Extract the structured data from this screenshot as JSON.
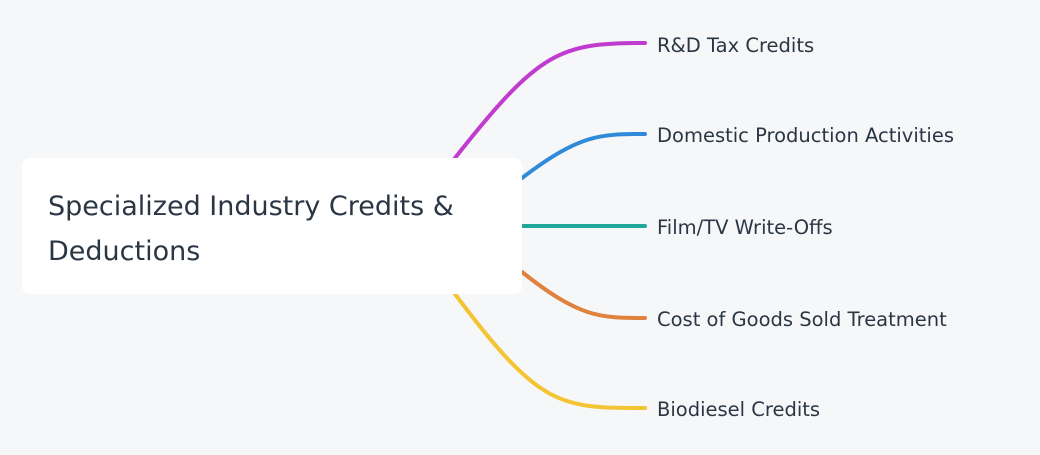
{
  "root": {
    "label": "Specialized Industry Credits & Deductions"
  },
  "branches": [
    {
      "label": "R&D Tax Credits"
    },
    {
      "label": "Domestic Production Activities"
    },
    {
      "label": "Film/TV Write-Offs"
    },
    {
      "label": "Cost of Goods Sold Treatment"
    },
    {
      "label": "Biodiesel Credits"
    }
  ]
}
